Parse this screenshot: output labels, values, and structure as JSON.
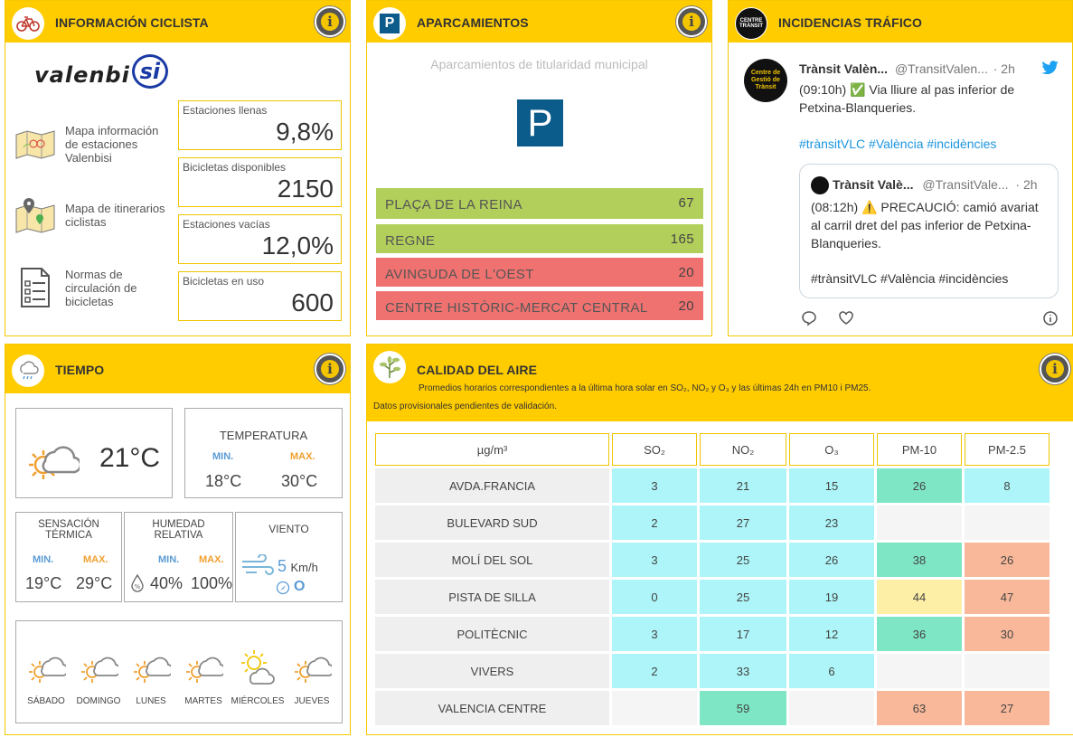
{
  "ciclista": {
    "title": "INFORMACIÓN CICLISTA",
    "logo_text": "valenbi",
    "logo_badge": "si",
    "links": [
      {
        "label": "Mapa información de estaciones Valenbisi",
        "icon": "map-bike-icon"
      },
      {
        "label": "Mapa de itinerarios ciclistas",
        "icon": "map-pin-icon"
      },
      {
        "label": "Normas de circulación de bicicletas",
        "icon": "document-list-icon"
      }
    ],
    "stats": [
      {
        "label": "Estaciones llenas",
        "value": "9,8%"
      },
      {
        "label": "Bicicletas disponibles",
        "value": "2150"
      },
      {
        "label": "Estaciones vacías",
        "value": "12,0%"
      },
      {
        "label": "Bicicletas en uso",
        "value": "600"
      }
    ]
  },
  "aparcamientos": {
    "title": "APARCAMIENTOS",
    "subtitle": "Aparcamientos de titularidad municipal",
    "sign": "P",
    "items": [
      {
        "name": "PLAÇA DE LA REINA",
        "value": "67",
        "color": "#b2cf5b"
      },
      {
        "name": "REGNE",
        "value": "165",
        "color": "#b2cf5b"
      },
      {
        "name": "AVINGUDA DE L'OEST",
        "value": "20",
        "color": "#f07270"
      },
      {
        "name": "CENTRE HISTÒRIC-MERCAT CENTRAL",
        "value": "20",
        "color": "#f07270"
      }
    ]
  },
  "trafico": {
    "title": "INCIDENCIAS TRÁFICO",
    "tweet": {
      "author": "Trànsit Valèn...",
      "handle": "@TransitValen...",
      "age": "· 2h",
      "text": "(09:10h) ✅ Via lliure al pas inferior de Petxina-Blanqueries.",
      "hashtags": "#trànsitVLC #València #incidències"
    },
    "quoted": {
      "author": "Trànsit Valè...",
      "handle": "@TransitVale...",
      "age": "· 2h",
      "text": "(08:12h) ⚠️ PRECAUCIÓ: camió avariat al carril dret del pas inferior de Petxina-Blanqueries.",
      "hashtags": "#trànsitVLC #València #incidències"
    }
  },
  "tiempo": {
    "title": "TIEMPO",
    "current_temp": "21°C",
    "temperatura": {
      "label": "TEMPERATURA",
      "min_label": "MIN.",
      "max_label": "MAX.",
      "min": "18°C",
      "max": "30°C"
    },
    "sensacion": {
      "label": "SENSACIÓN TÉRMICA",
      "min_label": "MIN.",
      "max_label": "MAX.",
      "min": "19°C",
      "max": "29°C"
    },
    "humedad": {
      "label": "HUMEDAD RELATIVA",
      "min_label": "MIN.",
      "max_label": "MAX.",
      "min": "40%",
      "max": "100%"
    },
    "viento": {
      "label": "VIENTO",
      "speed": "5",
      "unit": "Km/h",
      "dir": "O"
    },
    "forecast": [
      {
        "day": "SÁBADO",
        "icon": "partly-cloudy-icon"
      },
      {
        "day": "DOMINGO",
        "icon": "partly-cloudy-icon"
      },
      {
        "day": "LUNES",
        "icon": "partly-cloudy-icon"
      },
      {
        "day": "MARTES",
        "icon": "partly-cloudy-icon"
      },
      {
        "day": "MIÉRCOLES",
        "icon": "sun-cloud-icon"
      },
      {
        "day": "JUEVES",
        "icon": "partly-cloudy-icon"
      }
    ]
  },
  "aire": {
    "title": "CALIDAD DEL AIRE",
    "note1": "Promedios horarios correspondientes a la última hora solar en SO₂, NO₂ y O₃ y las últimas 24h en PM10 i PM25.",
    "note2": "Datos provisionales pendientes de validación.",
    "headers": [
      "µg/m³",
      "SO₂",
      "NO₂",
      "O₃",
      "PM-10",
      "PM-2.5"
    ],
    "rows": [
      {
        "station": "AVDA.FRANCIA",
        "cells": [
          {
            "v": "3",
            "c": "cyan"
          },
          {
            "v": "21",
            "c": "cyan"
          },
          {
            "v": "15",
            "c": "cyan"
          },
          {
            "v": "26",
            "c": "green"
          },
          {
            "v": "8",
            "c": "cyan"
          }
        ]
      },
      {
        "station": "BULEVARD SUD",
        "cells": [
          {
            "v": "2",
            "c": "cyan"
          },
          {
            "v": "27",
            "c": "cyan"
          },
          {
            "v": "23",
            "c": "cyan"
          },
          {
            "v": "",
            "c": "blank"
          },
          {
            "v": "",
            "c": "blank"
          }
        ]
      },
      {
        "station": "MOLÍ DEL SOL",
        "cells": [
          {
            "v": "3",
            "c": "cyan"
          },
          {
            "v": "25",
            "c": "cyan"
          },
          {
            "v": "26",
            "c": "cyan"
          },
          {
            "v": "38",
            "c": "green"
          },
          {
            "v": "26",
            "c": "sal"
          }
        ]
      },
      {
        "station": "PISTA DE SILLA",
        "cells": [
          {
            "v": "0",
            "c": "cyan"
          },
          {
            "v": "25",
            "c": "cyan"
          },
          {
            "v": "19",
            "c": "cyan"
          },
          {
            "v": "44",
            "c": "yel"
          },
          {
            "v": "47",
            "c": "sal"
          }
        ]
      },
      {
        "station": "POLITÈCNIC",
        "cells": [
          {
            "v": "3",
            "c": "cyan"
          },
          {
            "v": "17",
            "c": "cyan"
          },
          {
            "v": "12",
            "c": "cyan"
          },
          {
            "v": "36",
            "c": "green"
          },
          {
            "v": "30",
            "c": "sal"
          }
        ]
      },
      {
        "station": "VIVERS",
        "cells": [
          {
            "v": "2",
            "c": "cyan"
          },
          {
            "v": "33",
            "c": "cyan"
          },
          {
            "v": "6",
            "c": "cyan"
          },
          {
            "v": "",
            "c": "blank"
          },
          {
            "v": "",
            "c": "blank"
          }
        ]
      },
      {
        "station": "VALENCIA CENTRE",
        "cells": [
          {
            "v": "",
            "c": "blank"
          },
          {
            "v": "59",
            "c": "green"
          },
          {
            "v": "",
            "c": "blank"
          },
          {
            "v": "63",
            "c": "sal"
          },
          {
            "v": "27",
            "c": "sal"
          }
        ]
      }
    ]
  },
  "info_label": "i"
}
